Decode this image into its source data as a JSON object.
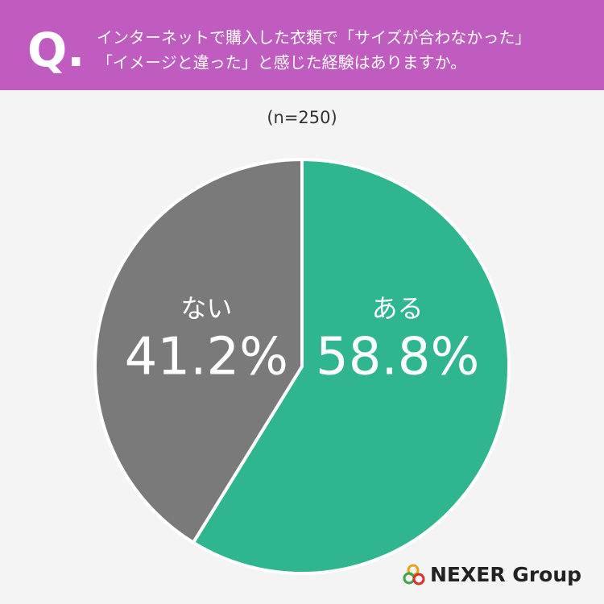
{
  "chart_data": {
    "type": "pie",
    "question_mark": "Q.",
    "title_lines": [
      "インターネットで購入した衣類で「サイズが合わなかった」",
      "「イメージと違った」と感じた経験はありますか。"
    ],
    "subtitle": "(n=250)",
    "categories": [
      "ある",
      "ない"
    ],
    "values": [
      58.8,
      41.2
    ],
    "value_labels": [
      "58.8%",
      "41.2%"
    ],
    "colors": [
      "#2fb690",
      "#7a7a7a"
    ],
    "logo": "NEXER Group"
  }
}
